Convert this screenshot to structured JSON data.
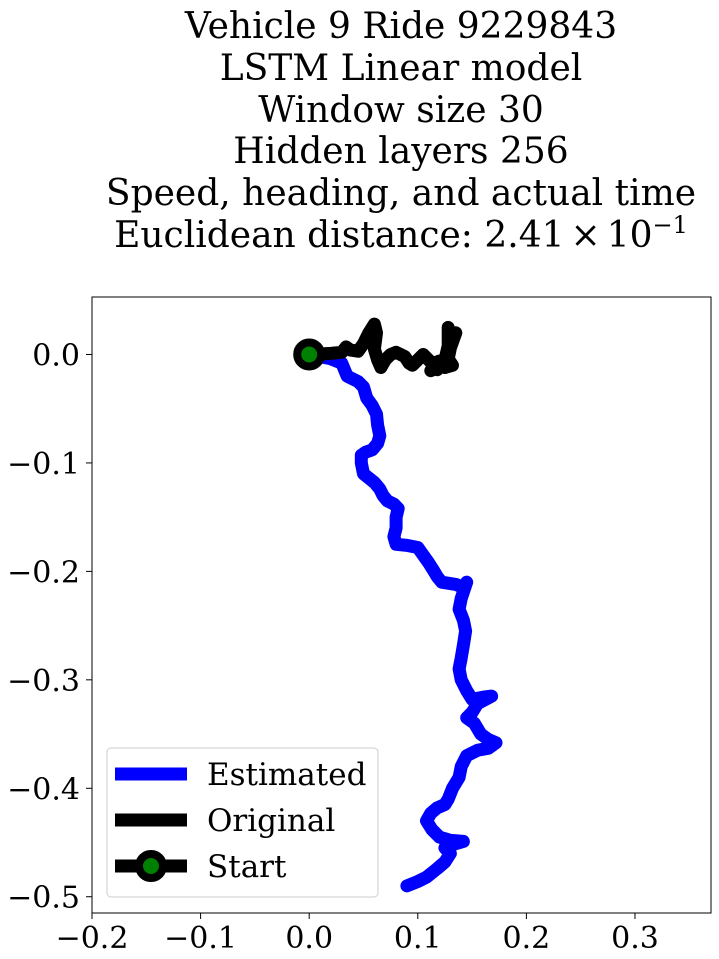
{
  "chart_data": {
    "type": "line",
    "title_lines": [
      "Vehicle 9 Ride 9229843",
      "LSTM Linear model",
      "Window size 30",
      "Hidden layers 256",
      "Speed, heading, and actual time"
    ],
    "title_metric": {
      "prefix": "Euclidean distance: ",
      "mantissa": "2.41",
      "times": "×",
      "base": "10",
      "exponent": "−1"
    },
    "xlabel": "",
    "ylabel": "",
    "xlim": [
      -0.2,
      0.37
    ],
    "ylim": [
      -0.515,
      0.053
    ],
    "grid": false,
    "legend_position": "lower left",
    "x_ticks": [
      {
        "value": -0.2,
        "label": "−0.2"
      },
      {
        "value": -0.1,
        "label": "−0.1"
      },
      {
        "value": 0.0,
        "label": "0.0"
      },
      {
        "value": 0.1,
        "label": "0.1"
      },
      {
        "value": 0.2,
        "label": "0.2"
      },
      {
        "value": 0.3,
        "label": "0.3"
      }
    ],
    "y_ticks": [
      {
        "value": 0.0,
        "label": "0.0"
      },
      {
        "value": -0.1,
        "label": "−0.1"
      },
      {
        "value": -0.2,
        "label": "−0.2"
      },
      {
        "value": -0.3,
        "label": "−0.3"
      },
      {
        "value": -0.4,
        "label": "−0.4"
      },
      {
        "value": -0.5,
        "label": "−0.5"
      }
    ],
    "series": [
      {
        "name": "Estimated",
        "color": "#0000ff",
        "points": [
          [
            0.0,
            0.0
          ],
          [
            0.01,
            -0.002
          ],
          [
            0.02,
            -0.004
          ],
          [
            0.03,
            -0.008
          ],
          [
            0.035,
            -0.02
          ],
          [
            0.045,
            -0.025
          ],
          [
            0.05,
            -0.03
          ],
          [
            0.053,
            -0.04
          ],
          [
            0.058,
            -0.047
          ],
          [
            0.062,
            -0.055
          ],
          [
            0.063,
            -0.065
          ],
          [
            0.065,
            -0.075
          ],
          [
            0.063,
            -0.082
          ],
          [
            0.058,
            -0.088
          ],
          [
            0.052,
            -0.09
          ],
          [
            0.048,
            -0.093
          ],
          [
            0.048,
            -0.1
          ],
          [
            0.05,
            -0.11
          ],
          [
            0.06,
            -0.118
          ],
          [
            0.065,
            -0.124
          ],
          [
            0.068,
            -0.13
          ],
          [
            0.072,
            -0.135
          ],
          [
            0.078,
            -0.138
          ],
          [
            0.082,
            -0.142
          ],
          [
            0.08,
            -0.15
          ],
          [
            0.08,
            -0.16
          ],
          [
            0.078,
            -0.168
          ],
          [
            0.08,
            -0.175
          ],
          [
            0.09,
            -0.176
          ],
          [
            0.1,
            -0.178
          ],
          [
            0.105,
            -0.185
          ],
          [
            0.11,
            -0.192
          ],
          [
            0.115,
            -0.2
          ],
          [
            0.118,
            -0.205
          ],
          [
            0.122,
            -0.21
          ],
          [
            0.135,
            -0.212
          ],
          [
            0.142,
            -0.215
          ],
          [
            0.145,
            -0.21
          ],
          [
            0.14,
            -0.225
          ],
          [
            0.138,
            -0.235
          ],
          [
            0.142,
            -0.245
          ],
          [
            0.144,
            -0.255
          ],
          [
            0.142,
            -0.268
          ],
          [
            0.14,
            -0.28
          ],
          [
            0.138,
            -0.29
          ],
          [
            0.14,
            -0.3
          ],
          [
            0.145,
            -0.31
          ],
          [
            0.15,
            -0.318
          ],
          [
            0.16,
            -0.316
          ],
          [
            0.168,
            -0.315
          ],
          [
            0.155,
            -0.322
          ],
          [
            0.15,
            -0.33
          ],
          [
            0.145,
            -0.335
          ],
          [
            0.152,
            -0.34
          ],
          [
            0.158,
            -0.35
          ],
          [
            0.165,
            -0.355
          ],
          [
            0.172,
            -0.358
          ],
          [
            0.165,
            -0.363
          ],
          [
            0.155,
            -0.365
          ],
          [
            0.145,
            -0.37
          ],
          [
            0.14,
            -0.38
          ],
          [
            0.138,
            -0.39
          ],
          [
            0.132,
            -0.4
          ],
          [
            0.128,
            -0.41
          ],
          [
            0.125,
            -0.415
          ],
          [
            0.118,
            -0.418
          ],
          [
            0.112,
            -0.423
          ],
          [
            0.108,
            -0.43
          ],
          [
            0.113,
            -0.438
          ],
          [
            0.12,
            -0.445
          ],
          [
            0.13,
            -0.448
          ],
          [
            0.142,
            -0.449
          ],
          [
            0.132,
            -0.452
          ],
          [
            0.125,
            -0.455
          ],
          [
            0.13,
            -0.46
          ],
          [
            0.125,
            -0.468
          ],
          [
            0.118,
            -0.474
          ],
          [
            0.108,
            -0.482
          ],
          [
            0.1,
            -0.486
          ],
          [
            0.09,
            -0.49
          ]
        ]
      },
      {
        "name": "Original",
        "color": "#000000",
        "points": [
          [
            0.0,
            0.0
          ],
          [
            0.02,
            0.001
          ],
          [
            0.03,
            0.002
          ],
          [
            0.034,
            0.007
          ],
          [
            0.038,
            0.004
          ],
          [
            0.045,
            0.003
          ],
          [
            0.05,
            0.01
          ],
          [
            0.055,
            0.02
          ],
          [
            0.06,
            0.028
          ],
          [
            0.062,
            0.02
          ],
          [
            0.06,
            0.005
          ],
          [
            0.063,
            -0.005
          ],
          [
            0.066,
            -0.012
          ],
          [
            0.07,
            -0.005
          ],
          [
            0.075,
            0.0
          ],
          [
            0.08,
            0.002
          ],
          [
            0.088,
            -0.002
          ],
          [
            0.092,
            -0.008
          ],
          [
            0.095,
            -0.01
          ],
          [
            0.1,
            -0.005
          ],
          [
            0.105,
            0.0
          ],
          [
            0.11,
            -0.005
          ],
          [
            0.115,
            -0.01
          ],
          [
            0.112,
            -0.015
          ],
          [
            0.118,
            -0.012
          ],
          [
            0.125,
            -0.005
          ],
          [
            0.128,
            0.008
          ],
          [
            0.128,
            0.018
          ],
          [
            0.128,
            0.025
          ],
          [
            0.13,
            0.016
          ],
          [
            0.135,
            0.02
          ],
          [
            0.13,
            0.006
          ],
          [
            0.128,
            -0.004
          ],
          [
            0.132,
            -0.01
          ],
          [
            0.125,
            -0.012
          ],
          [
            0.118,
            -0.01
          ],
          [
            0.115,
            -0.008
          ],
          [
            0.12,
            -0.006
          ],
          [
            0.118,
            -0.014
          ]
        ]
      }
    ],
    "start_marker": {
      "label": "Start",
      "x": 0.0,
      "y": 0.0,
      "edge_color": "#000000",
      "face_color": "#008000"
    }
  }
}
